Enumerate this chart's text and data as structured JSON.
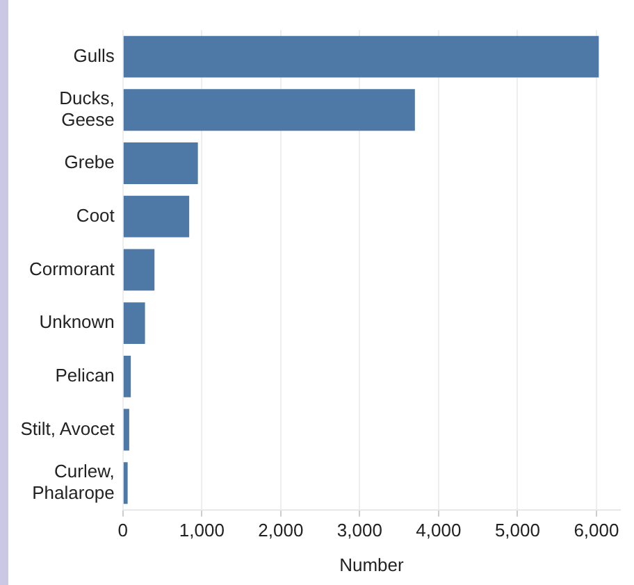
{
  "chart_data": {
    "type": "bar",
    "orientation": "horizontal",
    "xlabel": "Number",
    "categories": [
      "Gulls",
      "Ducks,\nGeese",
      "Grebe",
      "Coot",
      "Cormorant",
      "Unknown",
      "Pelican",
      "Stilt, Avocet",
      "Curlew,\nPhalarope"
    ],
    "values": [
      6030,
      3700,
      950,
      840,
      400,
      280,
      100,
      80,
      60
    ],
    "color": "#4e79a7",
    "xlim": [
      0,
      6300
    ],
    "xticks": [
      {
        "value": 0,
        "label": "0"
      },
      {
        "value": 1000,
        "label": "1,000"
      },
      {
        "value": 2000,
        "label": "2,000"
      },
      {
        "value": 3000,
        "label": "3,000"
      },
      {
        "value": 4000,
        "label": "4,000"
      },
      {
        "value": 5000,
        "label": "5,000"
      },
      {
        "value": 6000,
        "label": "6,000"
      }
    ],
    "grid": "x",
    "legend": false
  }
}
